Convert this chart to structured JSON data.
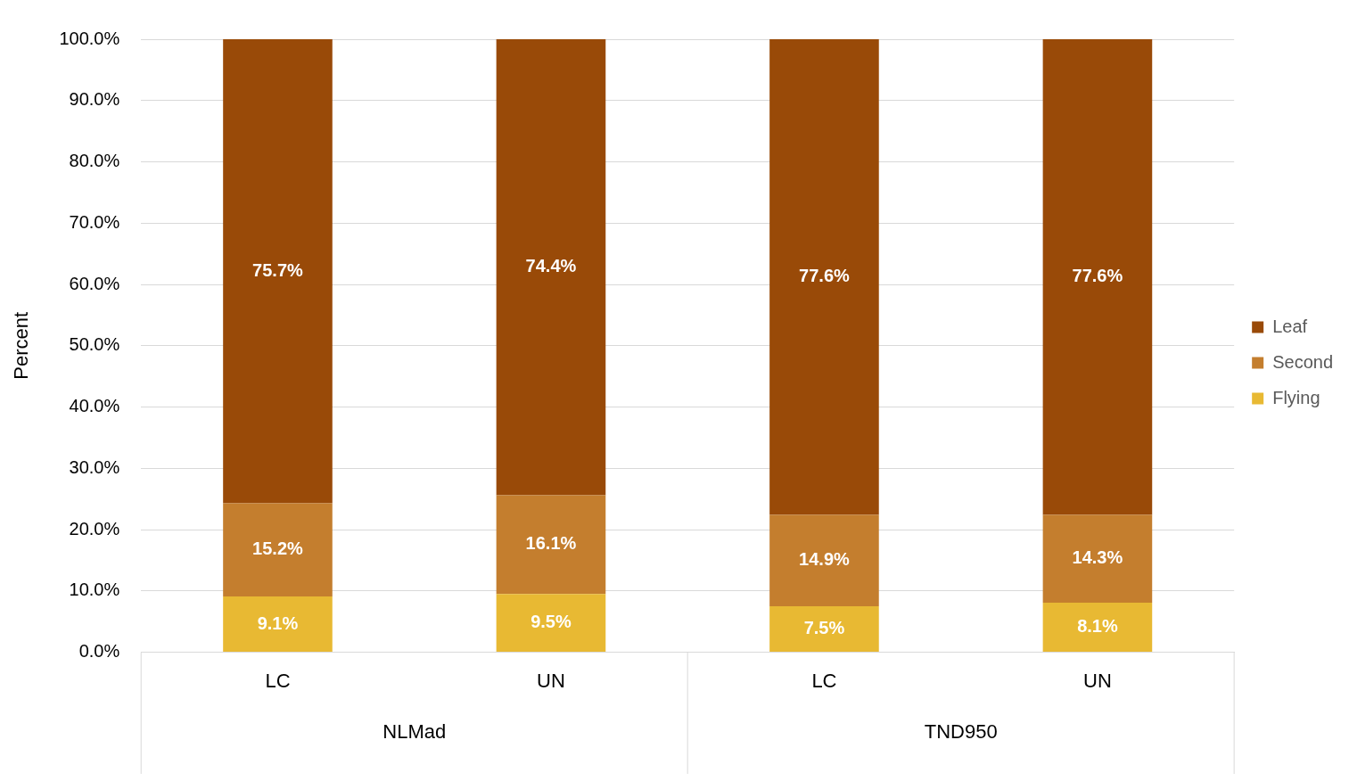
{
  "chart_data": {
    "type": "bar",
    "stacked": true,
    "ylabel": "Percent",
    "categories": [
      "LC",
      "UN",
      "LC",
      "UN"
    ],
    "series": [
      {
        "name": "Flying",
        "color": "#e8b933",
        "values": [
          9.1,
          9.5,
          7.5,
          8.1
        ],
        "value_labels": [
          "9.1%",
          "9.5%",
          "7.5%",
          "8.1%"
        ]
      },
      {
        "name": "Second",
        "color": "#c47e2e",
        "values": [
          15.2,
          16.1,
          14.9,
          14.3
        ],
        "value_labels": [
          "15.2%",
          "16.1%",
          "14.9%",
          "14.3%"
        ]
      },
      {
        "name": "Leaf",
        "color": "#994a08",
        "values": [
          75.7,
          74.4,
          77.6,
          77.6
        ],
        "value_labels": [
          "75.7%",
          "74.4%",
          "77.6%",
          "77.6%"
        ]
      }
    ],
    "ylim": [
      0,
      100
    ],
    "yticks": [
      {
        "value": 0,
        "label": "0.0%"
      },
      {
        "value": 10,
        "label": "10.0%"
      },
      {
        "value": 20,
        "label": "20.0%"
      },
      {
        "value": 30,
        "label": "30.0%"
      },
      {
        "value": 40,
        "label": "40.0%"
      },
      {
        "value": 50,
        "label": "50.0%"
      },
      {
        "value": 60,
        "label": "60.0%"
      },
      {
        "value": 70,
        "label": "70.0%"
      },
      {
        "value": 80,
        "label": "80.0%"
      },
      {
        "value": 90,
        "label": "90.0%"
      },
      {
        "value": 100,
        "label": "100.0%"
      }
    ],
    "grid": "y",
    "legend": "right",
    "annotations": [
      "NLMad",
      "TND950"
    ]
  }
}
